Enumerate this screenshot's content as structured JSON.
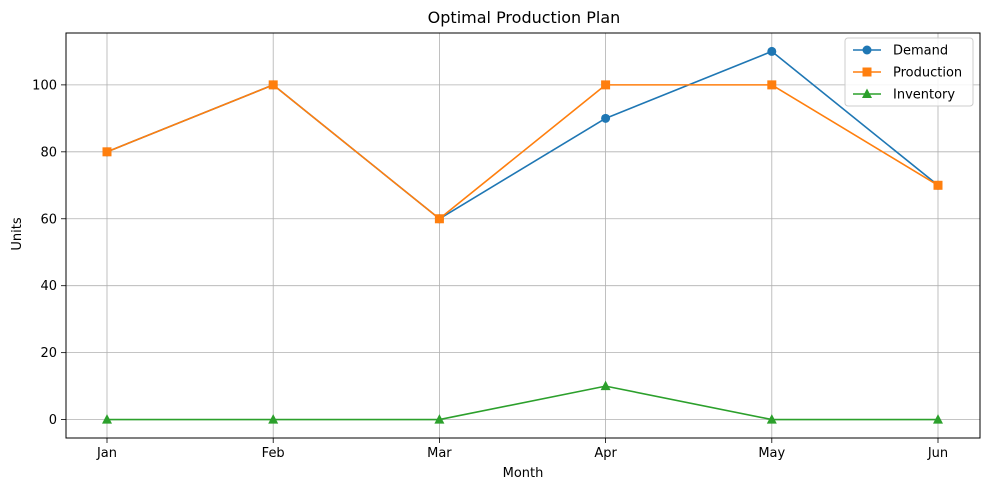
{
  "chart_data": {
    "type": "line",
    "title": "Optimal Production Plan",
    "xlabel": "Month",
    "ylabel": "Units",
    "categories": [
      "Jan",
      "Feb",
      "Mar",
      "Apr",
      "May",
      "Jun"
    ],
    "ylim": [
      -5.5,
      115.5
    ],
    "yticks": [
      0,
      20,
      40,
      60,
      80,
      100
    ],
    "ytick_labels": [
      "0",
      "20",
      "40",
      "60",
      "80",
      "100"
    ],
    "grid": true,
    "legend_position": "top-right",
    "series": [
      {
        "name": "Demand",
        "values": [
          80,
          100,
          60,
          90,
          110,
          70
        ],
        "color": "#1f77b4",
        "marker": "circle"
      },
      {
        "name": "Production",
        "values": [
          80,
          100,
          60,
          100,
          100,
          70
        ],
        "color": "#ff7f0e",
        "marker": "square"
      },
      {
        "name": "Inventory",
        "values": [
          0,
          0,
          0,
          10,
          0,
          0
        ],
        "color": "#2ca02c",
        "marker": "triangle"
      }
    ]
  }
}
